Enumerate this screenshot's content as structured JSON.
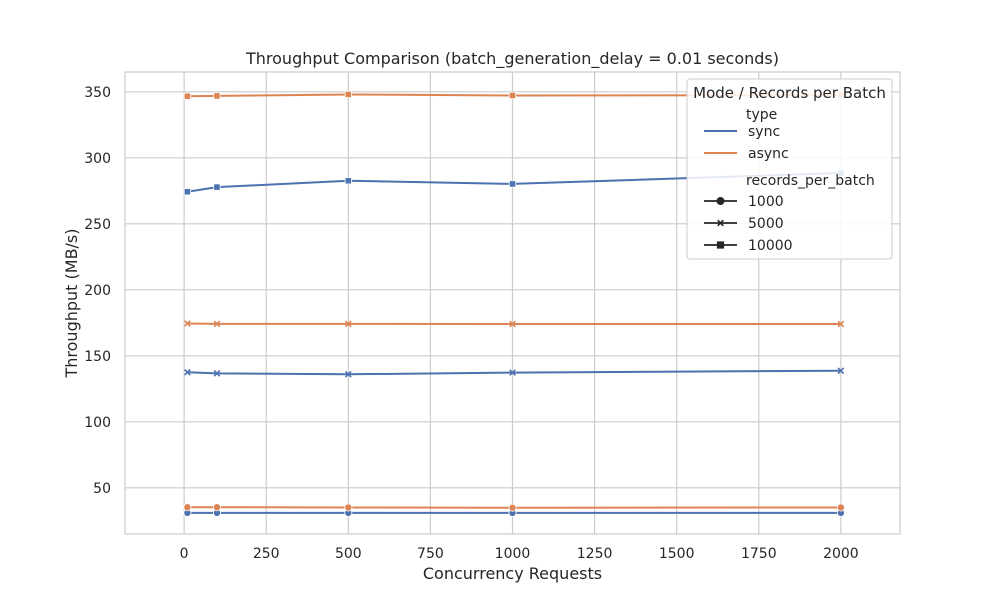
{
  "chart_data": {
    "type": "line",
    "title": "Throughput Comparison (batch_generation_delay = 0.01 seconds)",
    "xlabel": "Concurrency Requests",
    "ylabel": "Throughput (MB/s)",
    "xlim": [
      -180,
      2180
    ],
    "ylim": [
      15,
      365
    ],
    "xticks": [
      0,
      250,
      500,
      750,
      1000,
      1250,
      1500,
      1750,
      2000
    ],
    "yticks": [
      50,
      100,
      150,
      200,
      250,
      300,
      350
    ],
    "grid": true,
    "colors": {
      "sync": "#4c72b0",
      "async": "#dd8452"
    },
    "legend": {
      "title": "Mode / Records per Batch",
      "placement": "top-right",
      "type_header": "type",
      "types": [
        "sync",
        "async"
      ],
      "rpb_header": "records_per_batch",
      "rpb": [
        "1000",
        "5000",
        "10000"
      ]
    },
    "series": [
      {
        "type": "sync",
        "records_per_batch": 1000,
        "marker": "circle",
        "x": [
          10,
          100,
          500,
          1000,
          2000
        ],
        "y": [
          31,
          31,
          31,
          31,
          31
        ]
      },
      {
        "type": "sync",
        "records_per_batch": 5000,
        "marker": "x",
        "x": [
          10,
          100,
          500,
          1000,
          2000
        ],
        "y": [
          137.5,
          136.7,
          136,
          137.3,
          138.7
        ]
      },
      {
        "type": "sync",
        "records_per_batch": 10000,
        "marker": "square",
        "x": [
          10,
          100,
          500,
          1000,
          2000
        ],
        "y": [
          274.3,
          277.8,
          282.6,
          280.2,
          288.5
        ]
      },
      {
        "type": "async",
        "records_per_batch": 1000,
        "marker": "circle",
        "x": [
          10,
          100,
          500,
          1000,
          2000
        ],
        "y": [
          35.3,
          35.3,
          35.1,
          34.9,
          35.1
        ]
      },
      {
        "type": "async",
        "records_per_batch": 5000,
        "marker": "x",
        "x": [
          10,
          100,
          500,
          1000,
          2000
        ],
        "y": [
          174.5,
          174.2,
          174.2,
          174.1,
          174.1
        ]
      },
      {
        "type": "async",
        "records_per_batch": 10000,
        "marker": "square",
        "x": [
          10,
          100,
          500,
          1000,
          2000
        ],
        "y": [
          346.6,
          346.9,
          348,
          347.2,
          347.5
        ]
      }
    ]
  }
}
